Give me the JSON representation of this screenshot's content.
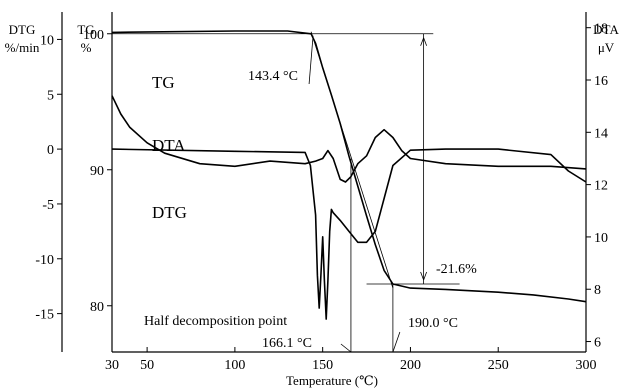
{
  "chart_data": {
    "type": "line",
    "title": "",
    "xlabel": "Temperature (℃)",
    "x_ticks": [
      30,
      50,
      100,
      150,
      200,
      250,
      300
    ],
    "xlim": [
      30,
      300
    ],
    "axes": {
      "dtg": {
        "title_line1": "DTG",
        "title_line2": "%/min",
        "ticks": [
          10,
          5,
          0,
          -5,
          -10,
          -15
        ],
        "ylim": [
          -18.5,
          12.5
        ]
      },
      "tg": {
        "title_line1": "TG",
        "title_line2": "%",
        "ticks": [
          100,
          90,
          80
        ],
        "ylim": [
          76.6,
          101.6
        ]
      },
      "dta": {
        "title_line1": "DTA",
        "title_line2": "μV",
        "ticks": [
          18,
          16,
          14,
          12,
          10,
          8,
          6
        ],
        "ylim": [
          5.6,
          18.6
        ]
      }
    },
    "series": [
      {
        "name": "TG",
        "axis": "tg",
        "x": [
          30,
          100,
          130,
          143.4,
          146,
          150,
          155,
          160,
          165,
          170,
          175,
          180,
          185,
          190,
          200,
          220,
          250,
          270,
          290,
          300
        ],
        "y": [
          100.1,
          100.2,
          100.2,
          100.0,
          99.3,
          97.5,
          95.5,
          93.4,
          91.0,
          88.8,
          86.6,
          84.5,
          82.6,
          81.6,
          81.3,
          81.2,
          81.0,
          80.8,
          80.5,
          80.3
        ]
      },
      {
        "name": "DTA",
        "axis": "dta",
        "x": [
          30,
          35,
          40,
          50,
          60,
          80,
          100,
          120,
          140,
          146,
          150,
          153,
          156,
          160,
          163,
          166,
          170,
          175,
          180,
          185,
          190,
          195,
          200,
          220,
          250,
          280,
          300
        ],
        "y": [
          15.4,
          14.7,
          14.2,
          13.6,
          13.2,
          12.8,
          12.7,
          12.9,
          12.8,
          12.9,
          13.0,
          13.3,
          13.0,
          12.2,
          12.1,
          12.3,
          12.8,
          13.1,
          13.8,
          14.1,
          13.8,
          13.3,
          13.0,
          12.8,
          12.7,
          12.7,
          12.6
        ]
      },
      {
        "name": "DTG",
        "axis": "dtg",
        "x": [
          30,
          100,
          140,
          143,
          146,
          147,
          148,
          149,
          150,
          151,
          152,
          153,
          154,
          155,
          156,
          160,
          165,
          170,
          175,
          180,
          185,
          190,
          200,
          220,
          250,
          280,
          290,
          300
        ],
        "y": [
          0,
          -0.2,
          -0.3,
          -1.5,
          -6,
          -11.5,
          -14.5,
          -11.5,
          -8,
          -12,
          -15.5,
          -12,
          -7.5,
          -5.5,
          -5.8,
          -6.5,
          -7.5,
          -8.5,
          -8.5,
          -7.5,
          -4.5,
          -1.5,
          -0.1,
          0,
          0,
          -0.5,
          -2,
          -3
        ]
      }
    ],
    "annotations": {
      "onset_temp": "143.4 °C",
      "mass_loss": "-21.6%",
      "half_point_label": "Half decomposition point",
      "half_point_temp": "166.1 °C",
      "end_temp": "190.0 °C"
    },
    "grid": false,
    "legend": "none"
  }
}
